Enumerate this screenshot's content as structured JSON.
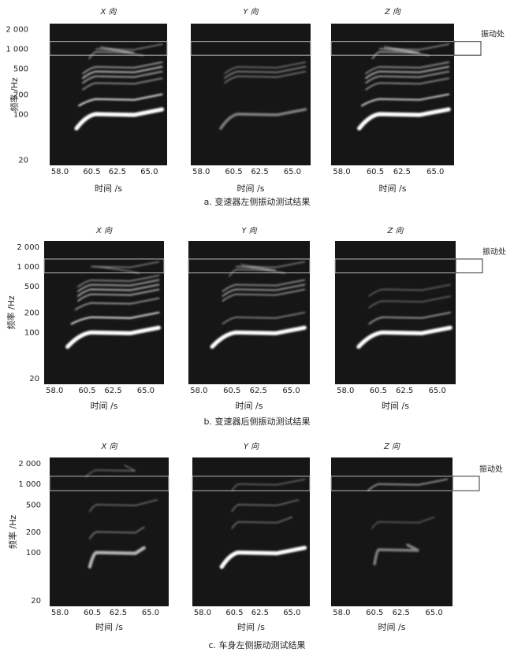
{
  "chart_data": [
    {
      "type": "heatmap",
      "caption": "a. 变速器左侧振动测试结果",
      "ylabel": "频率 /Hz",
      "xlabel": "时间 /s",
      "annotation": "振动处",
      "x_ticks": [
        "58.0",
        "60.5",
        "62.5",
        "65.0"
      ],
      "y_ticks": [
        "2 000",
        "1 000",
        "500",
        "200",
        "100",
        "20"
      ],
      "panels": [
        {
          "title": "X 向",
          "lines": [
            {
              "freq": 100,
              "intensity": 1.0,
              "start": 59.3,
              "end": 66.0
            },
            {
              "freq": 170,
              "intensity": 0.85,
              "start": 59.5,
              "end": 66.0
            },
            {
              "freq": 300,
              "intensity": 0.55,
              "start": 59.8,
              "end": 66.0
            },
            {
              "freq": 380,
              "intensity": 0.65,
              "start": 59.8,
              "end": 66.0
            },
            {
              "freq": 450,
              "intensity": 0.75,
              "start": 59.8,
              "end": 66.0
            },
            {
              "freq": 530,
              "intensity": 0.6,
              "start": 59.8,
              "end": 66.0
            },
            {
              "freq": 900,
              "intensity": 0.55,
              "start": 60.3,
              "end": 61.2
            },
            {
              "freq": 1000,
              "intensity": 0.45,
              "start": 64.5,
              "end": 66.0
            }
          ]
        },
        {
          "title": "Y 向",
          "lines": [
            {
              "freq": 100,
              "intensity": 0.45,
              "start": 59.5,
              "end": 66.0
            },
            {
              "freq": 380,
              "intensity": 0.45,
              "start": 59.8,
              "end": 66.0
            },
            {
              "freq": 450,
              "intensity": 0.5,
              "start": 59.8,
              "end": 66.0
            },
            {
              "freq": 530,
              "intensity": 0.4,
              "start": 59.8,
              "end": 66.0
            }
          ]
        },
        {
          "title": "Z 向",
          "lines": [
            {
              "freq": 100,
              "intensity": 1.0,
              "start": 59.3,
              "end": 66.0
            },
            {
              "freq": 170,
              "intensity": 0.8,
              "start": 59.5,
              "end": 66.0
            },
            {
              "freq": 300,
              "intensity": 0.55,
              "start": 59.8,
              "end": 66.0
            },
            {
              "freq": 380,
              "intensity": 0.6,
              "start": 59.8,
              "end": 66.0
            },
            {
              "freq": 450,
              "intensity": 0.7,
              "start": 59.8,
              "end": 66.0
            },
            {
              "freq": 530,
              "intensity": 0.55,
              "start": 59.8,
              "end": 66.0
            },
            {
              "freq": 900,
              "intensity": 0.6,
              "start": 60.3,
              "end": 61.2
            },
            {
              "freq": 1000,
              "intensity": 0.5,
              "start": 64.5,
              "end": 66.0
            }
          ]
        }
      ]
    },
    {
      "type": "heatmap",
      "caption": "b. 变速器后侧振动测试结果",
      "ylabel": "频率 /Hz",
      "xlabel": "时间 /s",
      "annotation": "振动处",
      "x_ticks": [
        "58.0",
        "60.5",
        "62.5",
        "65.0"
      ],
      "y_ticks": [
        "2 000",
        "1 000",
        "500",
        "200",
        "100",
        "20"
      ],
      "panels": [
        {
          "title": "X 向",
          "lines": [
            {
              "freq": 100,
              "intensity": 1.0,
              "start": 59.0,
              "end": 66.0
            },
            {
              "freq": 170,
              "intensity": 0.85,
              "start": 59.3,
              "end": 66.0
            },
            {
              "freq": 280,
              "intensity": 0.6,
              "start": 59.6,
              "end": 66.0
            },
            {
              "freq": 380,
              "intensity": 0.65,
              "start": 59.8,
              "end": 66.0
            },
            {
              "freq": 450,
              "intensity": 0.7,
              "start": 59.8,
              "end": 66.0
            },
            {
              "freq": 530,
              "intensity": 0.65,
              "start": 59.8,
              "end": 66.0
            },
            {
              "freq": 620,
              "intensity": 0.5,
              "start": 59.8,
              "end": 66.0
            },
            {
              "freq": 1000,
              "intensity": 0.45,
              "start": 64.5,
              "end": 66.0
            }
          ]
        },
        {
          "title": "Y 向",
          "lines": [
            {
              "freq": 100,
              "intensity": 1.0,
              "start": 59.0,
              "end": 66.0
            },
            {
              "freq": 170,
              "intensity": 0.5,
              "start": 59.8,
              "end": 66.0
            },
            {
              "freq": 380,
              "intensity": 0.55,
              "start": 59.8,
              "end": 66.0
            },
            {
              "freq": 450,
              "intensity": 0.6,
              "start": 59.8,
              "end": 66.0
            },
            {
              "freq": 530,
              "intensity": 0.55,
              "start": 59.8,
              "end": 66.0
            },
            {
              "freq": 900,
              "intensity": 0.45,
              "start": 60.3,
              "end": 61.2
            },
            {
              "freq": 1000,
              "intensity": 0.45,
              "start": 64.5,
              "end": 66.0
            }
          ]
        },
        {
          "title": "Z 向",
          "lines": [
            {
              "freq": 100,
              "intensity": 1.0,
              "start": 59.0,
              "end": 66.0
            },
            {
              "freq": 170,
              "intensity": 0.6,
              "start": 59.8,
              "end": 66.0
            },
            {
              "freq": 300,
              "intensity": 0.35,
              "start": 59.8,
              "end": 66.0
            },
            {
              "freq": 450,
              "intensity": 0.35,
              "start": 59.8,
              "end": 66.0
            }
          ]
        }
      ]
    },
    {
      "type": "heatmap",
      "caption": "c. 车身左侧振动测试结果",
      "ylabel": "频率 /Hz",
      "xlabel": "时间 /s",
      "annotation": "振动处",
      "x_ticks": [
        "58.0",
        "60.5",
        "62.5",
        "65.0"
      ],
      "y_ticks": [
        "2 000",
        "1 000",
        "500",
        "200",
        "100",
        "20"
      ],
      "panels": [
        {
          "title": "X 向",
          "lines": [
            {
              "freq": 100,
              "intensity": 0.7,
              "start": 60.3,
              "end": 64.5
            },
            {
              "freq": 200,
              "intensity": 0.45,
              "start": 60.3,
              "end": 64.5
            },
            {
              "freq": 500,
              "intensity": 0.4,
              "start": 60.3,
              "end": 65.5
            },
            {
              "freq": 1600,
              "intensity": 0.35,
              "start": 60.0,
              "end": 63.0
            }
          ]
        },
        {
          "title": "Y 向",
          "lines": [
            {
              "freq": 100,
              "intensity": 1.0,
              "start": 59.5,
              "end": 66.0
            },
            {
              "freq": 280,
              "intensity": 0.4,
              "start": 60.3,
              "end": 65.0
            },
            {
              "freq": 500,
              "intensity": 0.4,
              "start": 60.3,
              "end": 65.5
            },
            {
              "freq": 1000,
              "intensity": 0.35,
              "start": 60.3,
              "end": 66.0
            }
          ]
        },
        {
          "title": "Z 向",
          "lines": [
            {
              "freq": 110,
              "intensity": 0.45,
              "start": 60.5,
              "end": 63.0
            },
            {
              "freq": 280,
              "intensity": 0.3,
              "start": 60.3,
              "end": 65.0
            },
            {
              "freq": 1000,
              "intensity": 0.6,
              "start": 60.0,
              "end": 66.0
            }
          ]
        }
      ]
    }
  ]
}
